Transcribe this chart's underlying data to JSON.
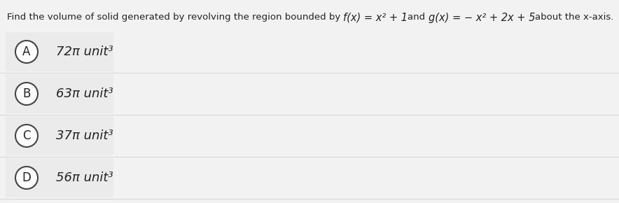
{
  "background_color": "#f2f2f2",
  "white_bg": "#ffffff",
  "option_box_color": "#ebebeb",
  "circle_face_color": "#ffffff",
  "circle_edge_color": "#444444",
  "text_color": "#222222",
  "title_plain": "Find the volume of solid generated by revolving the region bounded by ",
  "title_fx": "f(x) = x² + 1",
  "title_and": "and ",
  "title_gx": "g(x) = − x² + 2x + 5",
  "title_end": "about the x-axis.",
  "options": [
    {
      "label": "A",
      "num": "72",
      "pi": "π",
      "rest": " unit³"
    },
    {
      "label": "B",
      "num": "63",
      "pi": "π",
      "rest": " unit³"
    },
    {
      "label": "C",
      "num": "37",
      "pi": "π",
      "rest": " unit³"
    },
    {
      "label": "D",
      "num": "56",
      "pi": "π",
      "rest": " unit³"
    }
  ],
  "title_fontsize": 9.5,
  "option_fontsize": 13,
  "label_fontsize": 12,
  "fig_width": 8.84,
  "fig_height": 2.9,
  "dpi": 100
}
